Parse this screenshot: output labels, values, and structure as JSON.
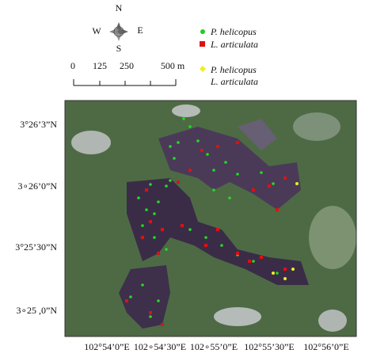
{
  "compass": {
    "north": "N",
    "south": "S",
    "east": "E",
    "west": "W"
  },
  "scale_bar": {
    "labels": [
      "0",
      "125",
      "250",
      "500 m"
    ]
  },
  "legend": [
    {
      "label": "P. helicopus"
    },
    {
      "label": "L. articulata"
    },
    {
      "label": "P. helicopus",
      "label2": "L. articulata"
    }
  ],
  "latitude_labels": [
    "3°26’3”N",
    "3∘26’0”N",
    "3°25’30”N",
    "3∘25 ,0”N"
  ],
  "longitude_labels": [
    "102°54’0”E",
    "102∘54’30”E",
    "102∘55’0”E",
    "102°55’30”E",
    "102°56’0”E"
  ]
}
